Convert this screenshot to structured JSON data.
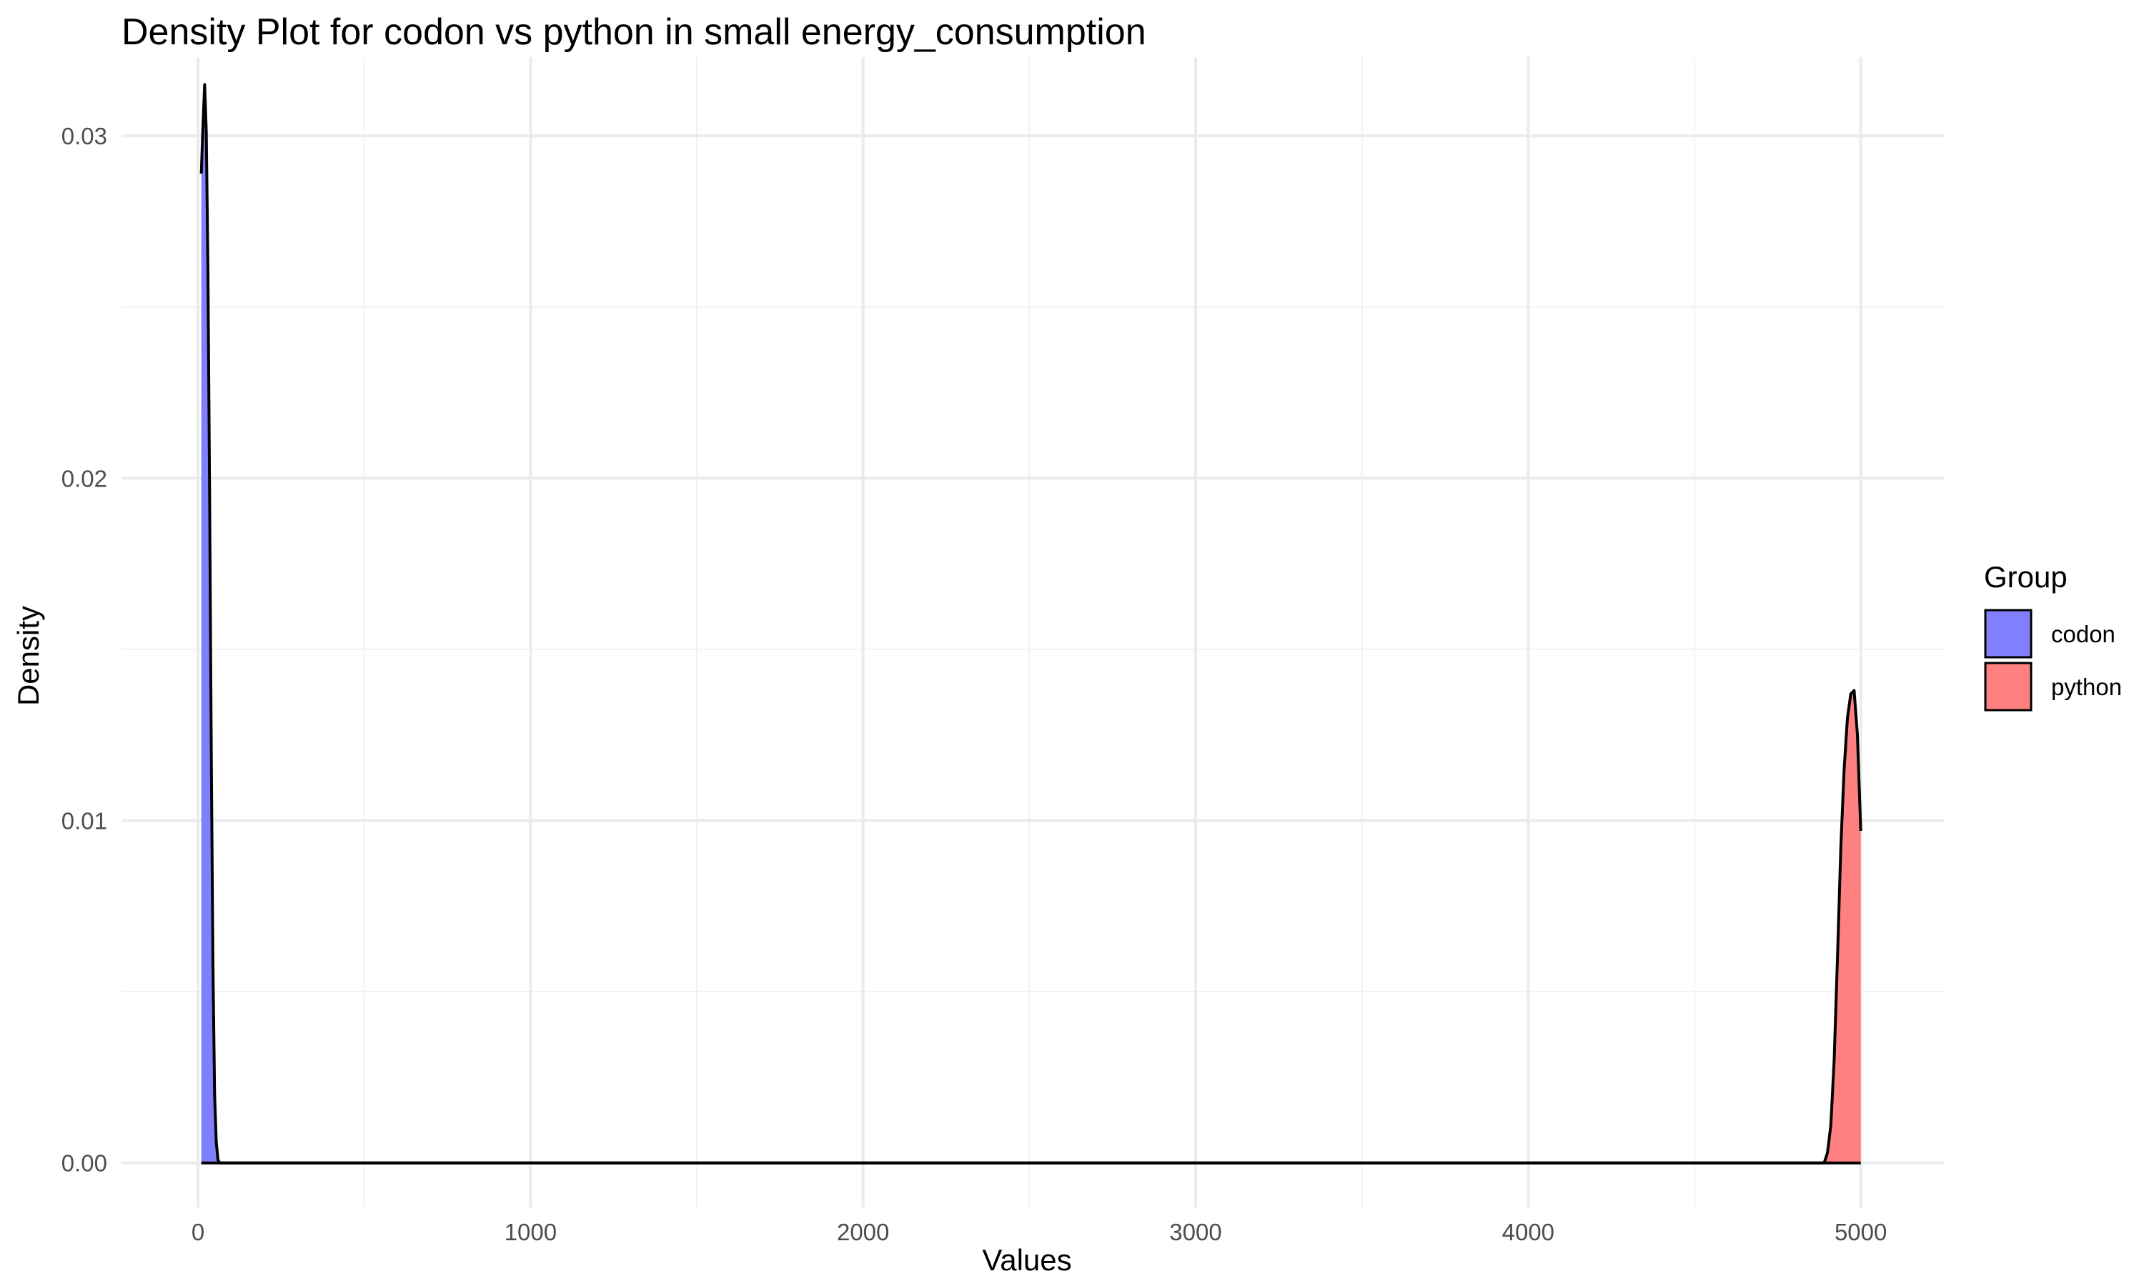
{
  "chart_data": {
    "type": "area",
    "title": "Density Plot for codon vs python in small energy_consumption",
    "xlabel": "Values",
    "ylabel": "Density",
    "xlim": [
      -230,
      5250
    ],
    "ylim": [
      -0.0013,
      0.0323
    ],
    "x_ticks": [
      0,
      1000,
      2000,
      3000,
      4000,
      5000
    ],
    "x_tick_labels": [
      "0",
      "1000",
      "2000",
      "3000",
      "4000",
      "5000"
    ],
    "y_ticks": [
      0.0,
      0.01,
      0.02,
      0.03
    ],
    "y_tick_labels": [
      "0.00",
      "0.01",
      "0.02",
      "0.03"
    ],
    "grid": true,
    "legend": {
      "title": "Group",
      "position": "right",
      "entries": [
        "codon",
        "python"
      ]
    },
    "series": [
      {
        "name": "codon",
        "color": "#8080ff",
        "x": [
          10,
          15,
          20,
          25,
          30,
          35,
          40,
          45,
          50,
          55,
          60,
          65,
          5000
        ],
        "y": [
          0.0289,
          0.0303,
          0.0315,
          0.0301,
          0.026,
          0.0195,
          0.012,
          0.0058,
          0.002,
          0.0006,
          0.0001,
          0.0,
          0.0
        ]
      },
      {
        "name": "python",
        "color": "#ff8080",
        "x": [
          10,
          4890,
          4900,
          4910,
          4920,
          4930,
          4940,
          4950,
          4960,
          4970,
          4980,
          4990,
          5000
        ],
        "y": [
          0.0,
          0.0,
          0.0003,
          0.0011,
          0.003,
          0.006,
          0.0092,
          0.0115,
          0.013,
          0.0137,
          0.0138,
          0.0125,
          0.0097
        ]
      }
    ]
  }
}
